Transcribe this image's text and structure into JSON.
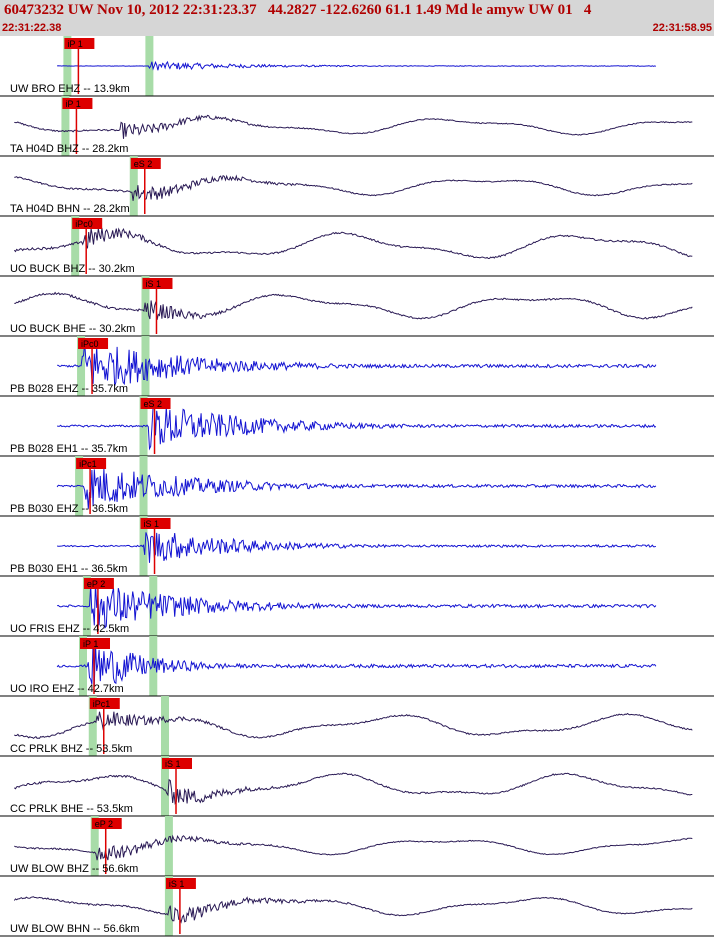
{
  "header": {
    "title": "60473232 UW Nov 10, 2012 22:31:23.37   44.2827 -122.6260 61.1 1.49 Md le amyw UW 01   4",
    "start_time": "22:31:22.38",
    "end_time": "22:31:58.95"
  },
  "colors": {
    "header_bg": "#d6d6d6",
    "header_text": "#b00000",
    "trace_short_period": "#1414d2",
    "trace_broadband": "#2a1a55",
    "pick": "#dd0000",
    "pick_window": "#a8dca8",
    "divider": "#000000"
  },
  "chart_data": {
    "type": "line",
    "title": "60473232 UW Nov 10, 2012 22:31:23.37   44.2827 -122.6260 61.1 1.49 Md le amyw UW 01   4",
    "x_start_label": "22:31:22.38",
    "x_end_label": "22:31:58.95",
    "x_range_s": [
      0,
      36.57
    ],
    "series": [
      {
        "label": "UW BRO EHZ -- 13.9km",
        "pick": "iP 1",
        "p_time": 3.4,
        "s_time": 7.6,
        "kind": "sp",
        "amp": 0.14,
        "onset": 7.6,
        "coda": 0.75
      },
      {
        "label": "TA H04D BHZ -- 28.2km",
        "pick": "iP 1",
        "p_time": 3.3,
        "s_time": null,
        "kind": "lp",
        "amp": 0.55,
        "onset": 6.2,
        "coda": 0.5
      },
      {
        "label": "TA H04D BHN -- 28.2km",
        "pick": "eS 2",
        "p_time": null,
        "s_time": 6.8,
        "kind": "lp",
        "amp": 0.6,
        "onset": 6.8,
        "coda": 0.55
      },
      {
        "label": "UO BUCK BHZ -- 30.2km",
        "pick": "iPc0",
        "p_time": 3.8,
        "s_time": null,
        "kind": "lp",
        "amp": 0.85,
        "onset": 4.2,
        "coda": 0.3
      },
      {
        "label": "UO BUCK BHE -- 30.2km",
        "pick": "iS 1",
        "p_time": null,
        "s_time": 7.4,
        "kind": "lp",
        "amp": 0.8,
        "onset": 7.4,
        "coda": 0.3
      },
      {
        "label": "PB B028 EHZ -- 35.7km",
        "pick": "iPc0",
        "p_time": 4.1,
        "s_time": 7.4,
        "kind": "sp",
        "amp": 0.8,
        "onset": 4.2,
        "coda": 0.8
      },
      {
        "label": "PB B028 EH1 -- 35.7km",
        "pick": "eS 2",
        "p_time": null,
        "s_time": 7.3,
        "kind": "sp",
        "amp": 0.72,
        "onset": 7.6,
        "coda": 0.75
      },
      {
        "label": "PB B030 EHZ -- 36.5km",
        "pick": "iPc1",
        "p_time": 4.0,
        "s_time": 7.3,
        "kind": "sp",
        "amp": 0.7,
        "onset": 4.3,
        "coda": 0.8
      },
      {
        "label": "PB B030 EH1 -- 36.5km",
        "pick": "iS 1",
        "p_time": null,
        "s_time": 7.3,
        "kind": "sp",
        "amp": 0.55,
        "onset": 7.4,
        "coda": 0.7
      },
      {
        "label": "UO FRIS EHZ -- 42.5km",
        "pick": "eP 2",
        "p_time": 4.4,
        "s_time": 7.8,
        "kind": "sp",
        "amp": 0.75,
        "onset": 4.6,
        "coda": 0.75
      },
      {
        "label": "UO IRO EHZ -- 42.7km",
        "pick": "iP 1",
        "p_time": 4.2,
        "s_time": 7.8,
        "kind": "sp",
        "amp": 0.8,
        "onset": 4.5,
        "coda": 0.45
      },
      {
        "label": "CC PRLK BHZ -- 53.5km",
        "pick": "iPc1",
        "p_time": 4.7,
        "s_time": 8.4,
        "kind": "lp",
        "amp": 0.75,
        "onset": 4.9,
        "coda": 0.4
      },
      {
        "label": "CC PRLK BHE -- 53.5km",
        "pick": "iS 1",
        "p_time": null,
        "s_time": 8.4,
        "kind": "lp",
        "amp": 0.8,
        "onset": 8.5,
        "coda": 0.4
      },
      {
        "label": "UW BLOW BHZ -- 56.6km",
        "pick": "eP 2",
        "p_time": 4.8,
        "s_time": 8.6,
        "kind": "lp",
        "amp": 0.55,
        "onset": 4.9,
        "coda": 0.6
      },
      {
        "label": "UW BLOW BHN -- 56.6km",
        "pick": "iS 1",
        "p_time": null,
        "s_time": 8.6,
        "kind": "lp",
        "amp": 0.6,
        "onset": 8.6,
        "coda": 0.6
      }
    ]
  }
}
